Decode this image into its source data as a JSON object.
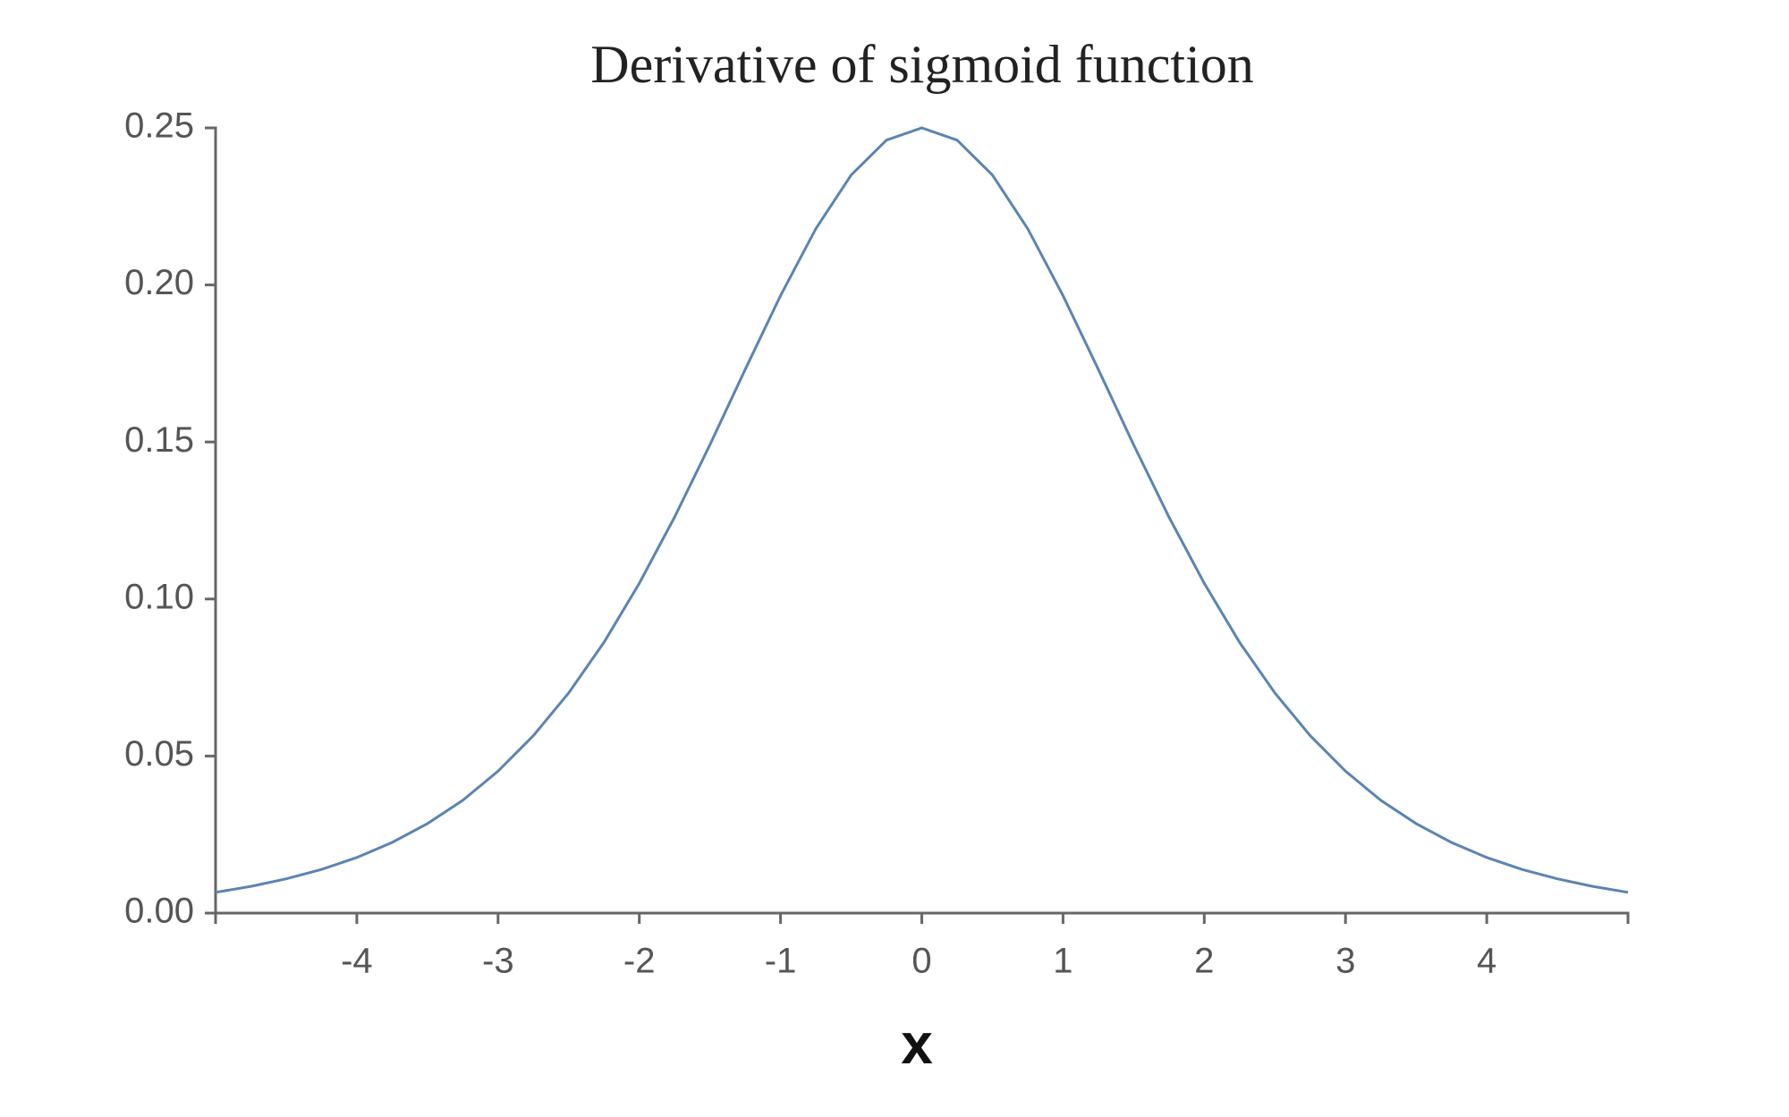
{
  "chart_data": {
    "type": "line",
    "title": "Derivative of sigmoid function",
    "xlabel": "x",
    "x": [
      -5,
      -4.75,
      -4.5,
      -4.25,
      -4,
      -3.75,
      -3.5,
      -3.25,
      -3,
      -2.75,
      -2.5,
      -2.25,
      -2,
      -1.75,
      -1.5,
      -1.25,
      -1,
      -0.75,
      -0.5,
      -0.25,
      0,
      0.25,
      0.5,
      0.75,
      1,
      1.25,
      1.5,
      1.75,
      2,
      2.25,
      2.5,
      2.75,
      3,
      3.25,
      3.5,
      3.75,
      4,
      4.25,
      4.5,
      4.75,
      5
    ],
    "series": [
      {
        "color": "#5b84b1",
        "values": [
          0.0066,
          0.0085,
          0.0109,
          0.0139,
          0.0177,
          0.0225,
          0.0285,
          0.0359,
          0.0452,
          0.0565,
          0.0701,
          0.0862,
          0.105,
          0.1261,
          0.1491,
          0.1731,
          0.1966,
          0.2179,
          0.235,
          0.2461,
          0.25,
          0.2461,
          0.235,
          0.2179,
          0.1966,
          0.1731,
          0.1491,
          0.1261,
          0.105,
          0.0862,
          0.0701,
          0.0565,
          0.0452,
          0.0359,
          0.0285,
          0.0225,
          0.0177,
          0.0139,
          0.0109,
          0.0085,
          0.0066
        ]
      }
    ],
    "xlim": [
      -5,
      5
    ],
    "xticks": [
      -4,
      -3,
      -2,
      -1,
      0,
      1,
      2,
      3,
      4
    ],
    "ylim": [
      0,
      0.25
    ],
    "yticks": [
      {
        "value": 0,
        "label": "0.00"
      },
      0.05,
      {
        "value": 0.1,
        "label": "0.10"
      },
      0.15,
      {
        "value": 0.2,
        "label": "0.20"
      },
      0.25
    ],
    "grid": false
  }
}
